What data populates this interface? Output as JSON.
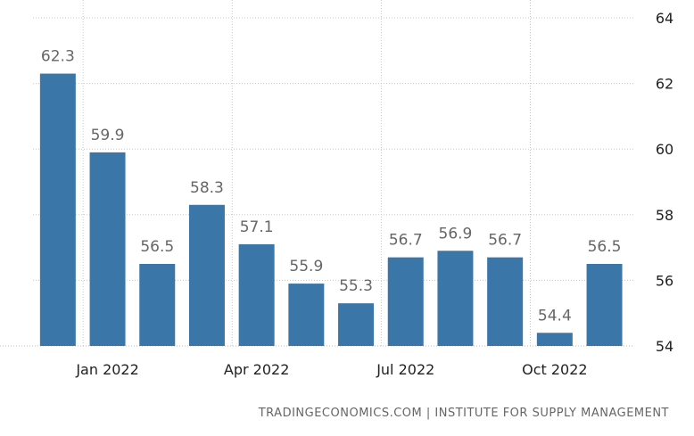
{
  "chart_data": {
    "type": "bar",
    "x": [
      "Dec 2021",
      "Jan 2022",
      "Feb 2022",
      "Mar 2022",
      "Apr 2022",
      "May 2022",
      "Jun 2022",
      "Jul 2022",
      "Aug 2022",
      "Sep 2022",
      "Oct 2022",
      "Nov 2022"
    ],
    "values": [
      62.3,
      59.9,
      56.5,
      58.3,
      57.1,
      55.9,
      55.3,
      56.7,
      56.9,
      56.7,
      54.4,
      56.5
    ],
    "data_labels": [
      "62.3",
      "59.9",
      "56.5",
      "58.3",
      "57.1",
      "55.9",
      "55.3",
      "56.7",
      "56.9",
      "56.7",
      "54.4",
      "56.5"
    ],
    "x_tick_labels": [
      {
        "label": "Jan 2022",
        "index": 1
      },
      {
        "label": "Apr 2022",
        "index": 4
      },
      {
        "label": "Jul 2022",
        "index": 7
      },
      {
        "label": "Oct 2022",
        "index": 10
      }
    ],
    "y_ticks": [
      54,
      56,
      58,
      60,
      62,
      64
    ],
    "ylim": [
      54,
      64
    ],
    "y_axis_side": "right",
    "grid": true,
    "bar_color": "#3a77a8",
    "label_color": "#666666"
  },
  "footer": {
    "source": "TRADINGECONOMICS.COM  |  INSTITUTE FOR SUPPLY MANAGEMENT"
  }
}
